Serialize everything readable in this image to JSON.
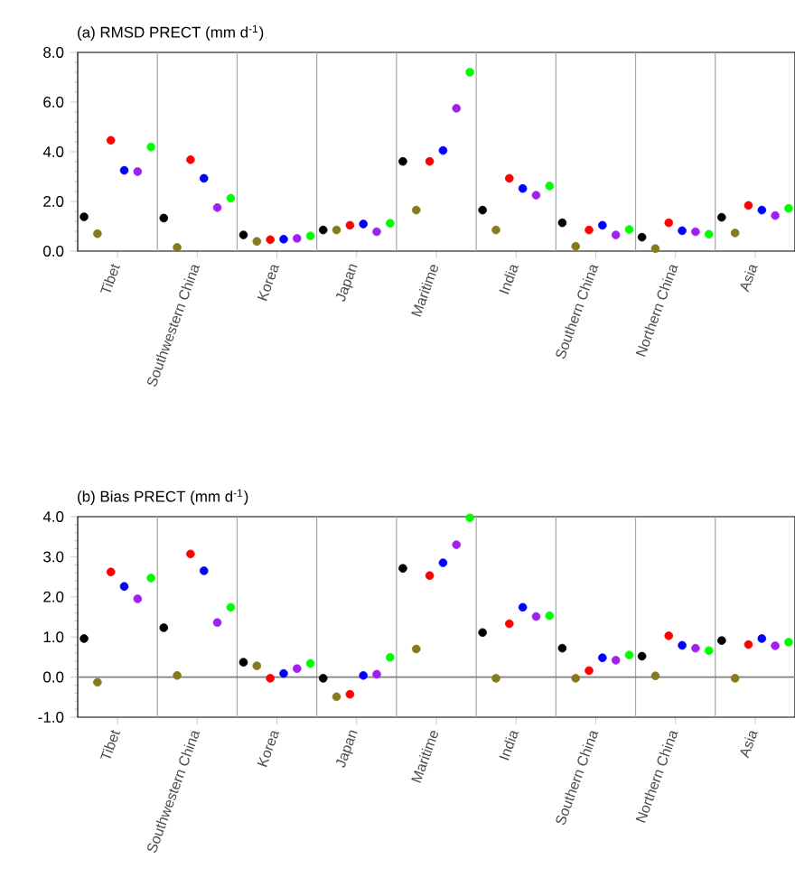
{
  "chart_data": [
    {
      "type": "scatter",
      "title": "(a) RMSD PRECT (mm d$^{-1}$)",
      "categories": [
        "Tibet",
        "Southwestern China",
        "Korea",
        "Japan",
        "Maritime",
        "India",
        "Southern China",
        "Northern China",
        "Asia"
      ],
      "ylim": [
        0,
        8
      ],
      "yticks": [
        {
          "value": 0,
          "label": "0.0"
        },
        {
          "value": 2,
          "label": "2.0"
        },
        {
          "value": 4,
          "label": "4.0"
        },
        {
          "value": 6,
          "label": "6.0"
        },
        {
          "value": 8,
          "label": "8.0"
        }
      ],
      "series": [
        {
          "color": "#000000",
          "values": [
            1.38,
            1.33,
            0.65,
            0.85,
            3.61,
            1.65,
            1.14,
            0.56,
            1.36
          ]
        },
        {
          "color": "#857a1c",
          "values": [
            0.7,
            0.15,
            0.39,
            0.85,
            1.65,
            0.85,
            0.19,
            0.1,
            0.73
          ]
        },
        {
          "color": "#ff0000",
          "values": [
            4.46,
            3.68,
            0.46,
            1.04,
            3.61,
            2.93,
            0.85,
            1.14,
            1.84
          ]
        },
        {
          "color": "#0000ff",
          "values": [
            3.25,
            2.93,
            0.48,
            1.09,
            4.05,
            2.52,
            1.04,
            0.82,
            1.65
          ]
        },
        {
          "color": "#a020f0",
          "values": [
            3.2,
            1.75,
            0.51,
            0.78,
            5.75,
            2.25,
            0.65,
            0.78,
            1.43
          ]
        },
        {
          "color": "#00ff00",
          "values": [
            4.19,
            2.13,
            0.61,
            1.12,
            7.2,
            2.62,
            0.87,
            0.68,
            1.72
          ]
        }
      ]
    },
    {
      "type": "scatter",
      "title": "(b) Bias PRECT (mm d$^{-1}$)",
      "categories": [
        "Tibet",
        "Southwestern China",
        "Korea",
        "Japan",
        "Maritime",
        "India",
        "Southern China",
        "Northern China",
        "Asia"
      ],
      "ylim": [
        -1,
        4
      ],
      "yticks": [
        {
          "value": -1,
          "label": "-1.0"
        },
        {
          "value": 0,
          "label": "0.0"
        },
        {
          "value": 1,
          "label": "1.0"
        },
        {
          "value": 2,
          "label": "2.0"
        },
        {
          "value": 3,
          "label": "3.0"
        },
        {
          "value": 4,
          "label": "4.0"
        }
      ],
      "ref_lines": [
        {
          "axis": "y",
          "value": 0,
          "color": "#808080"
        }
      ],
      "series": [
        {
          "color": "#000000",
          "values": [
            0.96,
            1.23,
            0.37,
            -0.03,
            2.71,
            1.11,
            0.72,
            0.52,
            0.91
          ]
        },
        {
          "color": "#857a1c",
          "values": [
            -0.13,
            0.04,
            0.28,
            -0.49,
            0.7,
            -0.03,
            -0.03,
            0.03,
            -0.03
          ]
        },
        {
          "color": "#ff0000",
          "values": [
            2.62,
            3.07,
            -0.03,
            -0.43,
            2.53,
            1.33,
            0.16,
            1.03,
            0.81
          ]
        },
        {
          "color": "#0000ff",
          "values": [
            2.26,
            2.65,
            0.09,
            0.04,
            2.85,
            1.74,
            0.48,
            0.79,
            0.96
          ]
        },
        {
          "color": "#a020f0",
          "values": [
            1.95,
            1.36,
            0.21,
            0.07,
            3.3,
            1.51,
            0.42,
            0.72,
            0.78
          ]
        },
        {
          "color": "#00ff00",
          "values": [
            2.47,
            1.74,
            0.34,
            0.49,
            3.97,
            1.53,
            0.55,
            0.66,
            0.87
          ]
        }
      ]
    }
  ]
}
